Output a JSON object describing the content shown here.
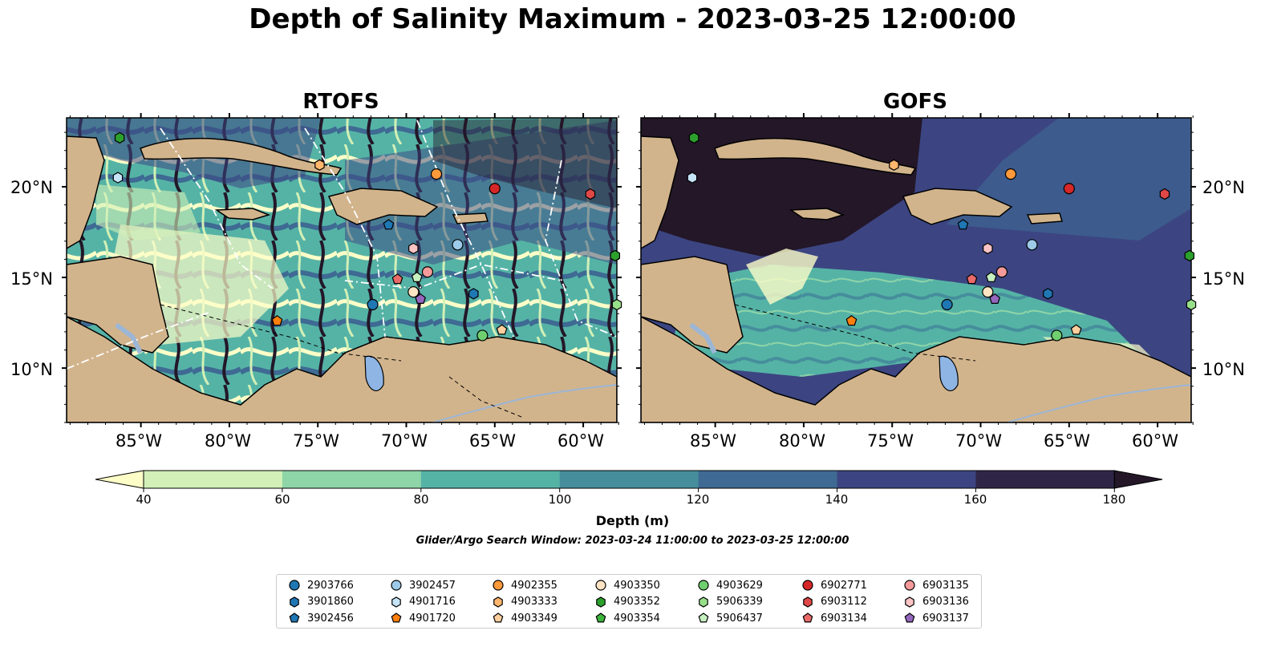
{
  "title": "Depth of Salinity Maximum - 2023-03-25 12:00:00",
  "panels": [
    {
      "title": "RTOFS"
    },
    {
      "title": "GOFS"
    }
  ],
  "lon_ticks": [
    "85°W",
    "80°W",
    "75°W",
    "70°W",
    "65°W",
    "60°W"
  ],
  "lat_ticks": [
    "20°N",
    "15°N",
    "10°N"
  ],
  "colorbar": {
    "label": "Depth (m)",
    "ticks": [
      "40",
      "60",
      "80",
      "100",
      "120",
      "140",
      "160",
      "180"
    ],
    "colors": [
      "#fdfdc8",
      "#d2f0b7",
      "#8ed5a7",
      "#55b3a6",
      "#468e9c",
      "#3e6a93",
      "#3c4582",
      "#2f2647",
      "#231728"
    ]
  },
  "search_window": "Glider/Argo Search Window: 2023-03-24 11:00:00 to 2023-03-25 12:00:00",
  "legend": [
    {
      "id": "2903766",
      "shape": "circle",
      "color": "#1f77b4"
    },
    {
      "id": "3901860",
      "shape": "hexagon",
      "color": "#1f77b4"
    },
    {
      "id": "3902456",
      "shape": "pentagon",
      "color": "#1f77b4"
    },
    {
      "id": "3902457",
      "shape": "circle",
      "color": "#9ecae9"
    },
    {
      "id": "4901716",
      "shape": "hexagon",
      "color": "#c6e4f7"
    },
    {
      "id": "4901720",
      "shape": "pentagon",
      "color": "#ff7f0e"
    },
    {
      "id": "4902355",
      "shape": "circle",
      "color": "#ff9a3c"
    },
    {
      "id": "4903333",
      "shape": "hexagon",
      "color": "#ffb66d"
    },
    {
      "id": "4903349",
      "shape": "pentagon",
      "color": "#ffcf9e"
    },
    {
      "id": "4903350",
      "shape": "circle",
      "color": "#ffe4c4"
    },
    {
      "id": "4903352",
      "shape": "hexagon",
      "color": "#2ca02c"
    },
    {
      "id": "4903354",
      "shape": "pentagon",
      "color": "#3cb43c"
    },
    {
      "id": "4903629",
      "shape": "circle",
      "color": "#6fcf6f"
    },
    {
      "id": "5906339",
      "shape": "hexagon",
      "color": "#98df8a"
    },
    {
      "id": "5906437",
      "shape": "pentagon",
      "color": "#c7f0c0"
    },
    {
      "id": "6902771",
      "shape": "circle",
      "color": "#d62728"
    },
    {
      "id": "6903112",
      "shape": "hexagon",
      "color": "#e04848"
    },
    {
      "id": "6903134",
      "shape": "pentagon",
      "color": "#ea6a6a"
    },
    {
      "id": "6903135",
      "shape": "circle",
      "color": "#f59a9a"
    },
    {
      "id": "6903136",
      "shape": "hexagon",
      "color": "#fbc4c4"
    },
    {
      "id": "6903137",
      "shape": "pentagon",
      "color": "#9467bd"
    }
  ],
  "observations": [
    {
      "id": "4903352",
      "lon": -86.2,
      "lat": 22.7
    },
    {
      "id": "4901716",
      "lon": -86.3,
      "lat": 20.5
    },
    {
      "id": "4903333",
      "lon": -74.9,
      "lat": 21.2
    },
    {
      "id": "4902355",
      "lon": -68.3,
      "lat": 20.7
    },
    {
      "id": "6902771",
      "lon": -65.0,
      "lat": 19.9
    },
    {
      "id": "6903112",
      "lon": -59.6,
      "lat": 19.6
    },
    {
      "id": "3902456",
      "lon": -71.0,
      "lat": 17.9
    },
    {
      "id": "3902457",
      "lon": -67.1,
      "lat": 16.8
    },
    {
      "id": "6903136",
      "lon": -69.6,
      "lat": 16.6
    },
    {
      "id": "4903352",
      "lon": -58.2,
      "lat": 16.2
    },
    {
      "id": "6903134",
      "lon": -70.5,
      "lat": 14.9
    },
    {
      "id": "5906437",
      "lon": -69.4,
      "lat": 15.0
    },
    {
      "id": "6903135",
      "lon": -68.8,
      "lat": 15.3
    },
    {
      "id": "4903350",
      "lon": -69.6,
      "lat": 14.2
    },
    {
      "id": "6903137",
      "lon": -69.2,
      "lat": 13.8
    },
    {
      "id": "3901860",
      "lon": -66.2,
      "lat": 14.1
    },
    {
      "id": "2903766",
      "lon": -71.9,
      "lat": 13.5
    },
    {
      "id": "5906339",
      "lon": -58.1,
      "lat": 13.5
    },
    {
      "id": "4901720",
      "lon": -77.3,
      "lat": 12.6
    },
    {
      "id": "4903349",
      "lon": -64.6,
      "lat": 12.1
    },
    {
      "id": "4903629",
      "lon": -65.7,
      "lat": 11.8
    }
  ]
}
